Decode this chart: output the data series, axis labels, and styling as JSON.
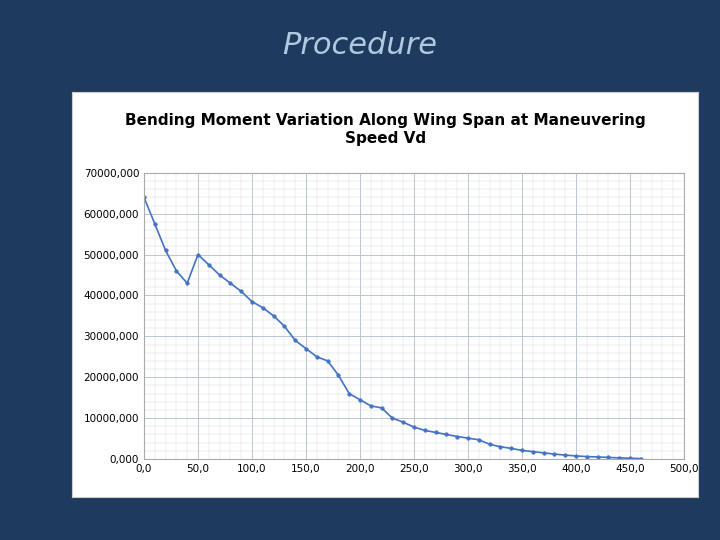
{
  "title": "Procedure",
  "chart_title": "Bending Moment Variation Along Wing Span at Maneuvering\nSpeed Vd",
  "background_color": "#1e3a5f",
  "chart_bg_color": "#ffffff",
  "panel_edge_color": "#cccccc",
  "line_color": "#4472c4",
  "marker_color": "#4472c4",
  "grid_major_color": "#b0bec5",
  "grid_minor_color": "#cfd8dc",
  "x_data": [
    0,
    10,
    20,
    30,
    40,
    50,
    60,
    70,
    80,
    90,
    100,
    110,
    120,
    130,
    140,
    150,
    160,
    170,
    180,
    190,
    200,
    210,
    220,
    230,
    240,
    250,
    260,
    270,
    280,
    290,
    300,
    310,
    320,
    330,
    340,
    350,
    360,
    370,
    380,
    390,
    400,
    410,
    420,
    430,
    440,
    450,
    460
  ],
  "y_data": [
    64000000,
    57500000,
    51000000,
    46000000,
    43000000,
    50000000,
    47500000,
    45000000,
    43000000,
    41000000,
    38500000,
    37000000,
    35000000,
    32500000,
    29000000,
    27000000,
    25000000,
    24000000,
    20500000,
    16000000,
    14500000,
    13000000,
    12500000,
    10000000,
    9000000,
    7800000,
    7000000,
    6500000,
    6000000,
    5500000,
    5100000,
    4700000,
    3600000,
    3000000,
    2600000,
    2100000,
    1800000,
    1500000,
    1200000,
    950000,
    750000,
    600000,
    500000,
    380000,
    280000,
    180000,
    100000
  ],
  "xlim": [
    0,
    500
  ],
  "ylim": [
    0,
    70000000
  ],
  "xticks": [
    0,
    50,
    100,
    150,
    200,
    250,
    300,
    350,
    400,
    450,
    500
  ],
  "yticks": [
    0,
    10000000,
    20000000,
    30000000,
    40000000,
    50000000,
    60000000,
    70000000
  ],
  "ytick_labels": [
    "0,000",
    "10000,000",
    "20000,000",
    "30000,000",
    "40000,000",
    "50000,000",
    "60000,000",
    "70000,000"
  ],
  "xtick_labels": [
    "0,0",
    "50,0",
    "100,0",
    "150,0",
    "200,0",
    "250,0",
    "300,0",
    "350,0",
    "400,0",
    "450,0",
    "500,0"
  ],
  "title_fontsize": 22,
  "chart_title_fontsize": 11,
  "tick_fontsize": 7.5,
  "title_color": "#b0c8e0"
}
